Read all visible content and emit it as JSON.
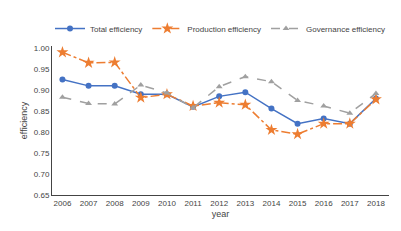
{
  "chart_data": {
    "type": "line",
    "x": [
      2006,
      2007,
      2008,
      2009,
      2010,
      2011,
      2012,
      2013,
      2014,
      2015,
      2016,
      2017,
      2018
    ],
    "x_label": "year",
    "y_label": "efficiency",
    "series": [
      {
        "name": "Total efficiency",
        "color": "#4472C4",
        "marker": "circle",
        "line_style": "solid",
        "values": [
          0.925,
          0.91,
          0.91,
          0.89,
          0.89,
          0.86,
          0.885,
          0.895,
          0.856,
          0.82,
          0.832,
          0.82,
          0.88
        ]
      },
      {
        "name": "Production efficiency",
        "color": "#ED7D31",
        "marker": "star",
        "line_style": "dashdot",
        "values": [
          0.99,
          0.965,
          0.966,
          0.882,
          0.89,
          0.862,
          0.87,
          0.865,
          0.805,
          0.795,
          0.82,
          0.82,
          0.878
        ]
      },
      {
        "name": "Governance efficiency",
        "color": "#A0A0A0",
        "marker": "triangle-up",
        "line_style": "dash",
        "values": [
          0.883,
          0.868,
          0.867,
          0.912,
          0.893,
          0.858,
          0.908,
          0.932,
          0.92,
          0.875,
          0.862,
          0.845,
          0.892
        ]
      }
    ],
    "xlim": [
      2005.6,
      2018.5
    ],
    "xticks": [
      2006,
      2007,
      2008,
      2009,
      2010,
      2011,
      2012,
      2013,
      2014,
      2015,
      2016,
      2017,
      2018
    ],
    "ylim": [
      0.65,
      1.005
    ],
    "yticks": [
      0.65,
      {
        "value": 0.7,
        "label": "0.70"
      },
      0.75,
      {
        "value": 0.8,
        "label": "0.80"
      },
      0.85,
      {
        "value": 0.9,
        "label": "0.90"
      },
      0.95,
      {
        "value": 1.0,
        "label": "1.00"
      }
    ],
    "grid": false,
    "legend": "top"
  }
}
